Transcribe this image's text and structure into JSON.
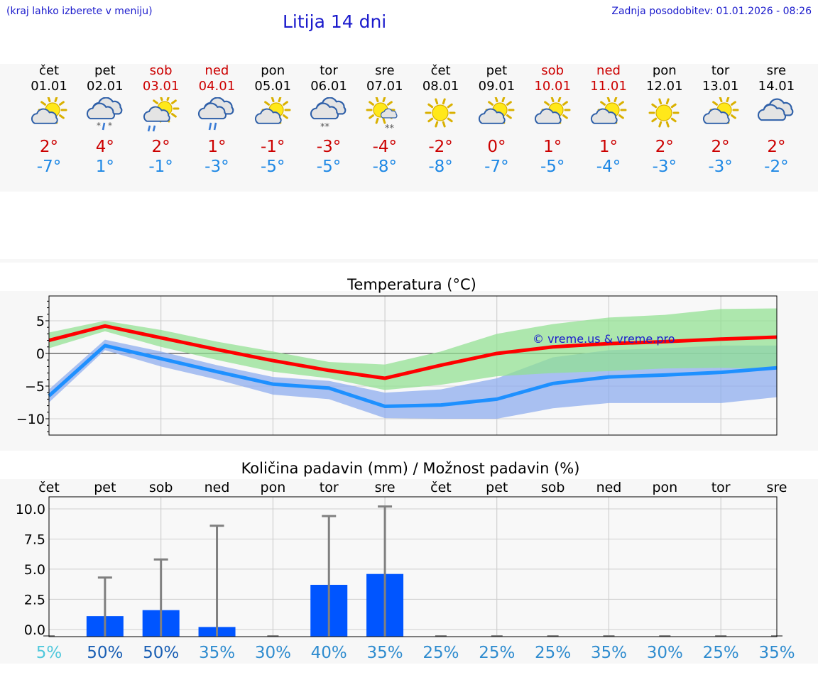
{
  "header": {
    "hint": "(kraj lahko izberete v meniju)",
    "title": "Litija 14 dni",
    "updated": "Zadnja posodobitev: 01.01.2026 - 08:26"
  },
  "days": [
    {
      "name": "čet",
      "date": "01.01",
      "weekend": false,
      "icon": "partly-cloudy-icon",
      "tmax": "2°",
      "tmin": "-7°"
    },
    {
      "name": "pet",
      "date": "02.01",
      "weekend": false,
      "icon": "cloudy-sleet-icon",
      "tmax": "4°",
      "tmin": "1°"
    },
    {
      "name": "sob",
      "date": "03.01",
      "weekend": true,
      "icon": "partly-cloudy-rain-icon",
      "tmax": "2°",
      "tmin": "-1°"
    },
    {
      "name": "ned",
      "date": "04.01",
      "weekend": true,
      "icon": "cloudy-rain-icon",
      "tmax": "1°",
      "tmin": "-3°"
    },
    {
      "name": "pon",
      "date": "05.01",
      "weekend": false,
      "icon": "partly-cloudy-icon",
      "tmax": "-1°",
      "tmin": "-5°"
    },
    {
      "name": "tor",
      "date": "06.01",
      "weekend": false,
      "icon": "cloudy-snow-icon",
      "tmax": "-3°",
      "tmin": "-5°"
    },
    {
      "name": "sre",
      "date": "07.01",
      "weekend": false,
      "icon": "sun-snow-icon",
      "tmax": "-4°",
      "tmin": "-8°"
    },
    {
      "name": "čet",
      "date": "08.01",
      "weekend": false,
      "icon": "sun-icon",
      "tmax": "-2°",
      "tmin": "-8°"
    },
    {
      "name": "pet",
      "date": "09.01",
      "weekend": false,
      "icon": "partly-cloudy-icon",
      "tmax": "0°",
      "tmin": "-7°"
    },
    {
      "name": "sob",
      "date": "10.01",
      "weekend": true,
      "icon": "partly-cloudy-icon",
      "tmax": "1°",
      "tmin": "-5°"
    },
    {
      "name": "ned",
      "date": "11.01",
      "weekend": true,
      "icon": "partly-cloudy-icon",
      "tmax": "1°",
      "tmin": "-4°"
    },
    {
      "name": "pon",
      "date": "12.01",
      "weekend": false,
      "icon": "sun-icon",
      "tmax": "2°",
      "tmin": "-3°"
    },
    {
      "name": "tor",
      "date": "13.01",
      "weekend": false,
      "icon": "partly-cloudy-icon",
      "tmax": "2°",
      "tmin": "-3°"
    },
    {
      "name": "sre",
      "date": "14.01",
      "weekend": false,
      "icon": "cloudy-icon",
      "tmax": "2°",
      "tmin": "-2°"
    }
  ],
  "colors": {
    "accent_blue_text": "#1a1acc",
    "weekend": "#cc0000",
    "tmin": "#1e88e5",
    "max_line": "#ff0000",
    "min_line": "#1e90ff",
    "max_band": "#90e090",
    "min_band": "#8aaaee",
    "precip_bar": "#0055ff",
    "err_bar": "#808080"
  },
  "chart_data": [
    {
      "type": "line",
      "title": "Temperatura (°C)",
      "watermark": "© vreme.us & vreme.pro",
      "x": [
        1,
        2,
        3,
        4,
        5,
        6,
        7,
        8,
        9,
        10,
        11,
        12,
        13,
        14
      ],
      "ylim": [
        -12.5,
        8.8
      ],
      "yticks": [
        5,
        0,
        -5,
        -10
      ],
      "ytick_labels": [
        "5",
        "0",
        "−5",
        "−10"
      ],
      "series": [
        {
          "name": "max",
          "values": [
            2.0,
            4.2,
            2.4,
            0.6,
            -1.1,
            -2.6,
            -3.8,
            -1.8,
            0.0,
            1.0,
            1.5,
            1.8,
            2.2,
            2.5
          ],
          "band_upper": [
            3.2,
            5.0,
            3.6,
            1.8,
            0.3,
            -1.3,
            -1.7,
            0.3,
            3.0,
            4.5,
            5.5,
            5.9,
            6.8,
            6.9
          ],
          "band_lower": [
            0.8,
            3.4,
            1.0,
            -1.0,
            -2.8,
            -3.8,
            -5.6,
            -4.8,
            -3.5,
            -3.0,
            -2.7,
            -2.3,
            -2.2,
            -2.4
          ]
        },
        {
          "name": "min",
          "values": [
            -6.5,
            1.2,
            -0.8,
            -2.8,
            -4.7,
            -5.3,
            -8.1,
            -7.9,
            -7.0,
            -4.6,
            -3.6,
            -3.3,
            -2.9,
            -2.2
          ],
          "band_upper": [
            -5.5,
            2.1,
            0.3,
            -1.8,
            -3.6,
            -4.2,
            -6.0,
            -5.5,
            -3.8,
            -0.6,
            0.5,
            0.8,
            1.2,
            1.2
          ],
          "band_lower": [
            -7.5,
            0.5,
            -2.0,
            -4.0,
            -6.3,
            -7.0,
            -9.9,
            -10.0,
            -10.0,
            -8.4,
            -7.6,
            -7.6,
            -7.6,
            -6.7
          ]
        }
      ]
    },
    {
      "type": "bar",
      "title": "Količina padavin (mm) / Možnost padavin (%)",
      "categories": [
        "čet",
        "pet",
        "sob",
        "ned",
        "pon",
        "tor",
        "sre",
        "čet",
        "pet",
        "sob",
        "ned",
        "pon",
        "tor",
        "sre"
      ],
      "values": [
        0,
        1.1,
        1.6,
        0.2,
        0,
        3.7,
        4.6,
        0,
        0,
        0,
        0,
        0,
        0,
        0
      ],
      "error_upper": [
        0,
        4.3,
        5.8,
        8.6,
        0,
        9.4,
        10.2,
        0,
        0,
        0,
        0,
        0,
        0,
        0
      ],
      "ylim": [
        -0.6,
        11.0
      ],
      "yticks": [
        10,
        7.5,
        5,
        2.5,
        0
      ],
      "ytick_labels": [
        "10.0",
        "7.5",
        "5.0",
        "2.5",
        "0.0"
      ],
      "probability": [
        "5%",
        "50%",
        "50%",
        "35%",
        "30%",
        "40%",
        "35%",
        "25%",
        "25%",
        "25%",
        "35%",
        "30%",
        "25%",
        "35%"
      ]
    }
  ]
}
